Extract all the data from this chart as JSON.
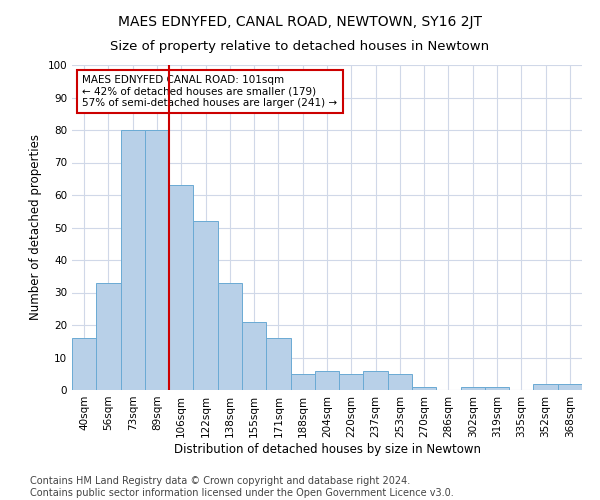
{
  "title": "MAES EDNYFED, CANAL ROAD, NEWTOWN, SY16 2JT",
  "subtitle": "Size of property relative to detached houses in Newtown",
  "xlabel": "Distribution of detached houses by size in Newtown",
  "ylabel": "Number of detached properties",
  "bar_labels": [
    "40sqm",
    "56sqm",
    "73sqm",
    "89sqm",
    "106sqm",
    "122sqm",
    "138sqm",
    "155sqm",
    "171sqm",
    "188sqm",
    "204sqm",
    "220sqm",
    "237sqm",
    "253sqm",
    "270sqm",
    "286sqm",
    "302sqm",
    "319sqm",
    "335sqm",
    "352sqm",
    "368sqm"
  ],
  "bar_values": [
    16,
    33,
    80,
    80,
    63,
    52,
    33,
    21,
    16,
    5,
    6,
    5,
    6,
    5,
    1,
    0,
    1,
    1,
    0,
    2,
    2
  ],
  "bar_color": "#b8d0e8",
  "bar_edge_color": "#6aaad4",
  "vline_x_index": 3.5,
  "vline_color": "#cc0000",
  "annotation_text": "MAES EDNYFED CANAL ROAD: 101sqm\n← 42% of detached houses are smaller (179)\n57% of semi-detached houses are larger (241) →",
  "annotation_box_color": "#ffffff",
  "annotation_box_edge": "#cc0000",
  "ylim": [
    0,
    100
  ],
  "yticks": [
    0,
    10,
    20,
    30,
    40,
    50,
    60,
    70,
    80,
    90,
    100
  ],
  "grid_color": "#d0d8e8",
  "background_color": "#ffffff",
  "footer": "Contains HM Land Registry data © Crown copyright and database right 2024.\nContains public sector information licensed under the Open Government Licence v3.0.",
  "title_fontsize": 10,
  "subtitle_fontsize": 9.5,
  "axis_label_fontsize": 8.5,
  "tick_fontsize": 7.5,
  "footer_fontsize": 7,
  "annotation_fontsize": 7.5
}
